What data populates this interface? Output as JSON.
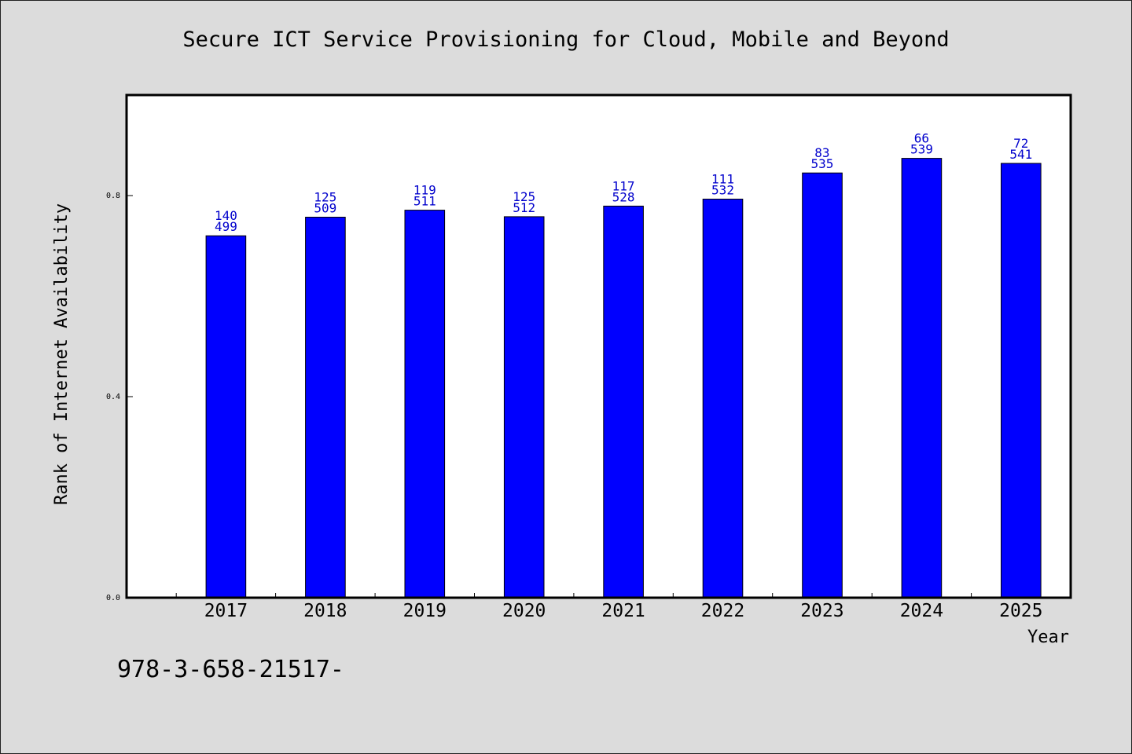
{
  "chart_data": {
    "type": "bar",
    "title": "Secure ICT Service Provisioning for Cloud, Mobile and Beyond",
    "xlabel": "Year",
    "ylabel": "Rank of Internet Availability",
    "categories": [
      "2017",
      "2018",
      "2019",
      "2020",
      "2021",
      "2022",
      "2023",
      "2024",
      "2025"
    ],
    "values": [
      0.72,
      0.757,
      0.771,
      0.758,
      0.779,
      0.793,
      0.845,
      0.874,
      0.864
    ],
    "bar_labels": [
      [
        "140",
        "499"
      ],
      [
        "125",
        "509"
      ],
      [
        "119",
        "511"
      ],
      [
        "125",
        "512"
      ],
      [
        "117",
        "528"
      ],
      [
        "111",
        "532"
      ],
      [
        "83",
        "535"
      ],
      [
        "66",
        "539"
      ],
      [
        "72",
        "541"
      ]
    ],
    "ylim": [
      0.0,
      1.0
    ],
    "yticks": [
      0.0,
      0.4,
      0.8
    ],
    "ytick_labels": [
      "0.0",
      "0.4",
      "0.8"
    ],
    "xlim": [
      2016,
      2025.5
    ],
    "grid": false,
    "legend": "none",
    "colors": {
      "bar": "#0000ff",
      "bar_label": "#0000cc",
      "plot_background": "#ffffff",
      "figure_background": "#dcdcdc"
    }
  },
  "footer": {
    "text": "978-3-658-21517-"
  }
}
